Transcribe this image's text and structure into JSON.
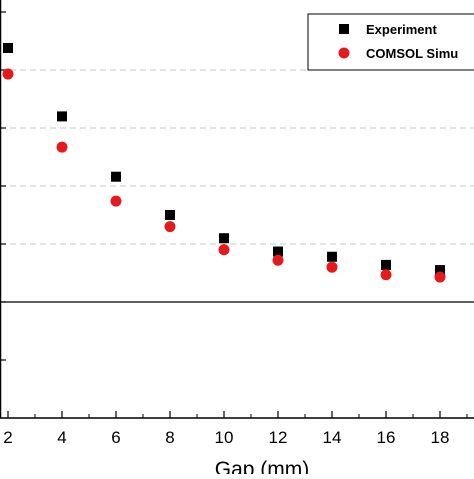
{
  "chart_data": {
    "type": "scatter",
    "xlabel": "Gap (mm)",
    "x_ticks": [
      2,
      4,
      6,
      8,
      10,
      12,
      14,
      16,
      18
    ],
    "xlim": [
      1.7,
      20.3
    ],
    "ylim": [
      0,
      7
    ],
    "gridlines_y": [
      3,
      4,
      5,
      6
    ],
    "reference_line_y": 2,
    "grid": true,
    "legend_position": "top-right",
    "series": [
      {
        "name": "Experiment",
        "marker": "square",
        "color": "#000000",
        "x": [
          2,
          4,
          6,
          8,
          10,
          12,
          14,
          16,
          18
        ],
        "y": [
          6.38,
          5.2,
          4.16,
          3.5,
          3.1,
          2.87,
          2.78,
          2.64,
          2.55
        ]
      },
      {
        "name": "COMSOL Simu",
        "marker": "circle",
        "color": "#e41a1c",
        "x": [
          2,
          4,
          6,
          8,
          10,
          12,
          14,
          16,
          18
        ],
        "y": [
          5.93,
          4.67,
          3.74,
          3.3,
          2.9,
          2.72,
          2.6,
          2.47,
          2.43
        ]
      }
    ]
  }
}
